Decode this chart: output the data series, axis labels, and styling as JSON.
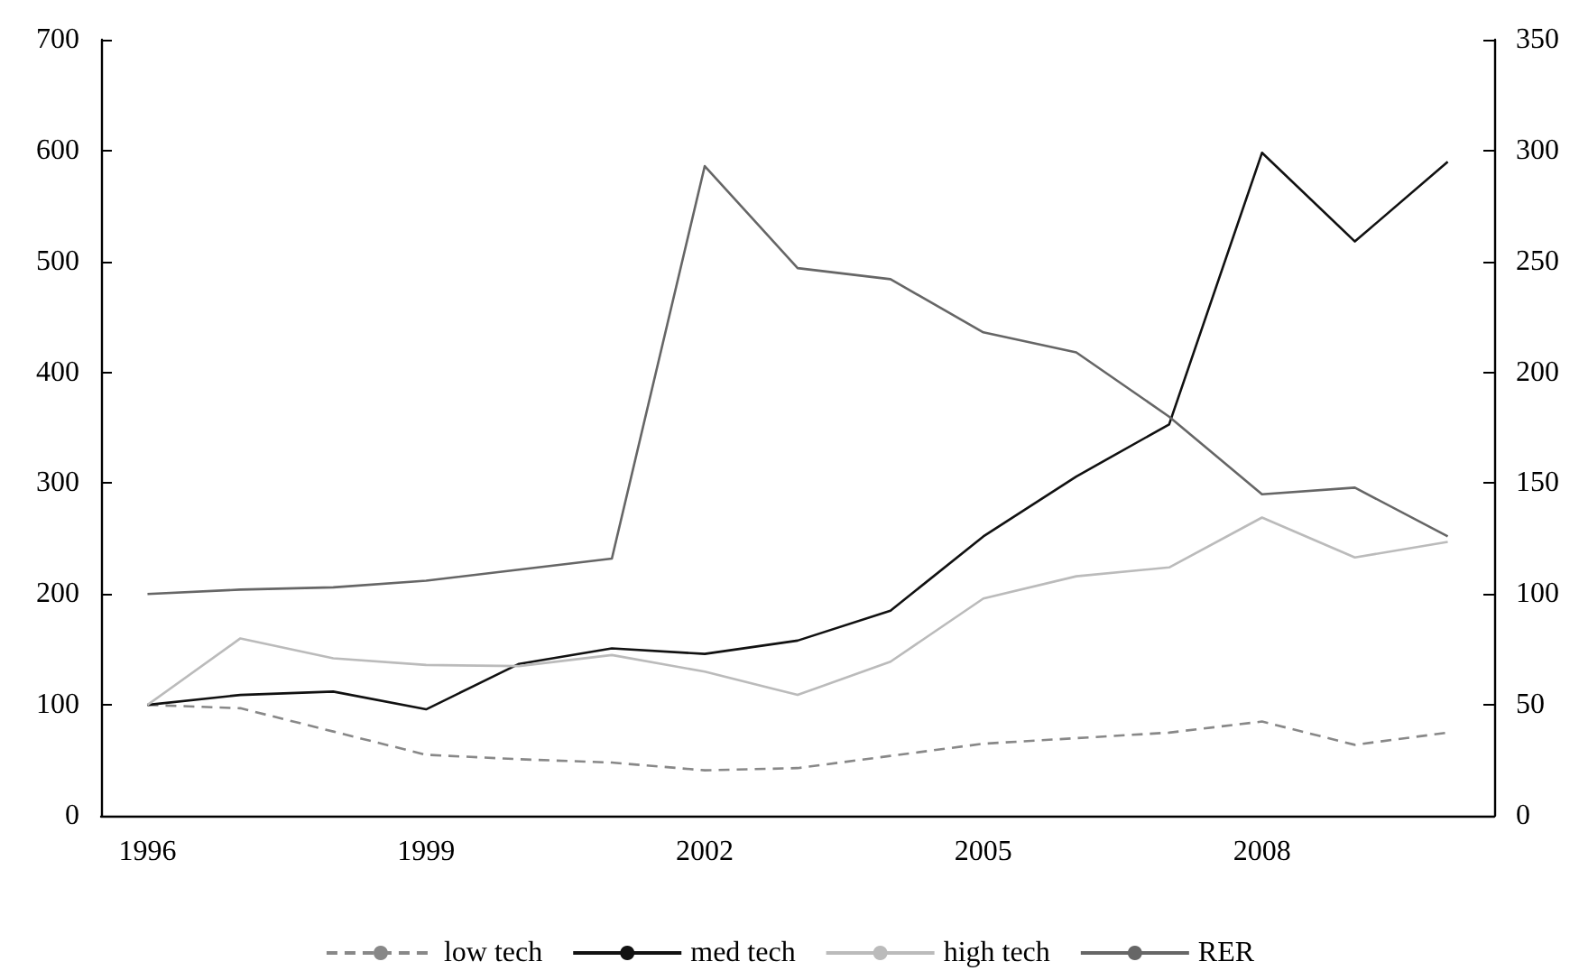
{
  "chart_data": {
    "type": "line",
    "categories": [
      "1996",
      null,
      null,
      "1999",
      null,
      null,
      "2002",
      null,
      null,
      "2005",
      null,
      null,
      "2008",
      null,
      null
    ],
    "series": [
      {
        "name": "low tech",
        "color": "#888888",
        "line_style": "dashed",
        "values": [
          100,
          97,
          76,
          55,
          51,
          48,
          41,
          43,
          54,
          65,
          70,
          75,
          85,
          64,
          75
        ]
      },
      {
        "name": "med tech",
        "color": "#111111",
        "line_style": "solid",
        "values": [
          100,
          109,
          112,
          96,
          137,
          151,
          146,
          158,
          185,
          252,
          306,
          353,
          598,
          518,
          590
        ]
      },
      {
        "name": "high tech",
        "color": "#bbbbbb",
        "line_style": "solid",
        "values": [
          100,
          160,
          142,
          136,
          135,
          145,
          130,
          109,
          139,
          196,
          216,
          224,
          269,
          233,
          247
        ]
      },
      {
        "name": "RER",
        "color": "#666666",
        "line_style": "solid",
        "axis": "y2",
        "values": [
          100,
          102,
          103,
          106,
          111,
          116,
          293,
          247,
          242,
          218,
          209,
          180,
          145,
          148,
          126
        ]
      }
    ],
    "ylim": [
      0,
      700
    ],
    "yticks": [
      0,
      100,
      200,
      300,
      400,
      500,
      600,
      700
    ],
    "y2lim": [
      0,
      350
    ],
    "y2ticks": [
      0,
      50,
      100,
      150,
      200,
      250,
      300,
      350
    ],
    "grid": false,
    "legend": "bottom",
    "marker": "none"
  }
}
